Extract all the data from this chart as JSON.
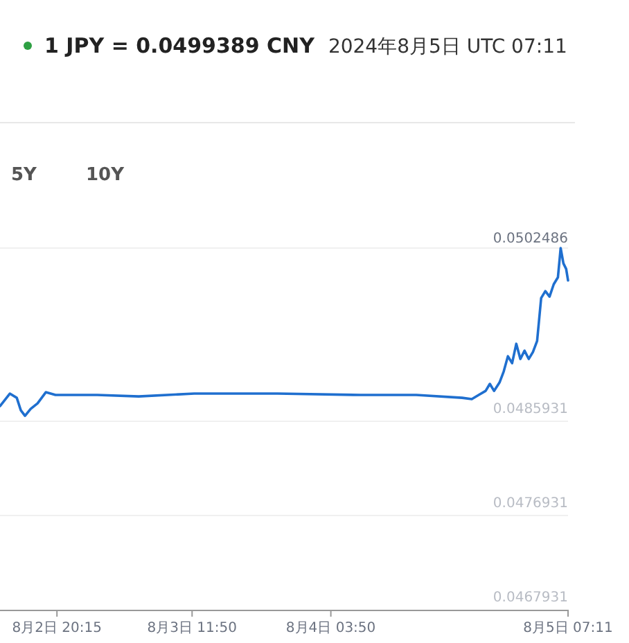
{
  "chart_data": {
    "type": "line",
    "title": "1 JPY = 0.0499389 CNY",
    "subtitle": "2024年8月5日 UTC 07:11",
    "annotations": [
      "5Y",
      "10Y"
    ],
    "x": [
      "2024-08-02T13:41",
      "2024-08-02T14:49",
      "2024-08-02T15:37",
      "2024-08-02T16:05",
      "2024-08-02T16:34",
      "2024-08-02T17:13",
      "2024-08-02T18:01",
      "2024-08-02T18:58",
      "2024-08-02T20:05",
      "2024-08-03T00:53",
      "2024-08-03T05:41",
      "2024-08-03T12:05",
      "2024-08-03T21:41",
      "2024-08-04T07:17",
      "2024-08-04T13:41",
      "2024-08-04T18:58",
      "2024-08-04T20:05",
      "2024-08-04T20:53",
      "2024-08-04T21:41",
      "2024-08-04T22:10",
      "2024-08-04T22:39",
      "2024-08-04T23:17",
      "2024-08-04T23:46",
      "2024-08-05T00:15",
      "2024-08-05T00:44",
      "2024-08-05T01:13",
      "2024-08-05T01:41",
      "2024-08-05T02:10",
      "2024-08-05T02:39",
      "2024-08-05T03:08",
      "2024-08-05T03:37",
      "2024-08-05T04:05",
      "2024-08-05T04:34",
      "2024-08-05T05:03",
      "2024-08-05T05:32",
      "2024-08-05T06:01",
      "2024-08-05T06:20",
      "2024-08-05T06:39",
      "2024-08-05T06:58",
      "2024-08-05T07:11"
    ],
    "series": [
      {
        "color": "#1f6fcf",
        "values": [
          0.048739,
          0.048858,
          0.048818,
          0.048699,
          0.048646,
          0.048712,
          0.048765,
          0.048871,
          0.048845,
          0.048845,
          0.048831,
          0.048858,
          0.048858,
          0.048845,
          0.048845,
          0.048818,
          0.048805,
          0.048845,
          0.048884,
          0.048951,
          0.048884,
          0.048964,
          0.04907,
          0.049215,
          0.049149,
          0.049334,
          0.049189,
          0.049268,
          0.049189,
          0.049255,
          0.049361,
          0.049771,
          0.049837,
          0.049784,
          0.049903,
          0.049969,
          0.0502486,
          0.050102,
          0.050049,
          0.0499389
        ]
      }
    ],
    "xlim": [
      "2024-08-02T13:41",
      "2024-08-05T07:11"
    ],
    "xticks": [
      {
        "value": "2024-08-02T20:15",
        "label": "8月2日 20:15"
      },
      {
        "value": "2024-08-03T11:50",
        "label": "8月3日 11:50"
      },
      {
        "value": "2024-08-04T03:50",
        "label": "8月4日 03:50"
      },
      {
        "value": "2024-08-05T07:11",
        "label": "8月5日 07:11"
      }
    ],
    "ylim": [
      0.0467931,
      0.0502486
    ],
    "yticks": [
      0.0467931,
      0.0476931,
      0.0485931,
      0.0502486
    ],
    "grid": "y",
    "marker": "none",
    "line_style": "solid"
  }
}
